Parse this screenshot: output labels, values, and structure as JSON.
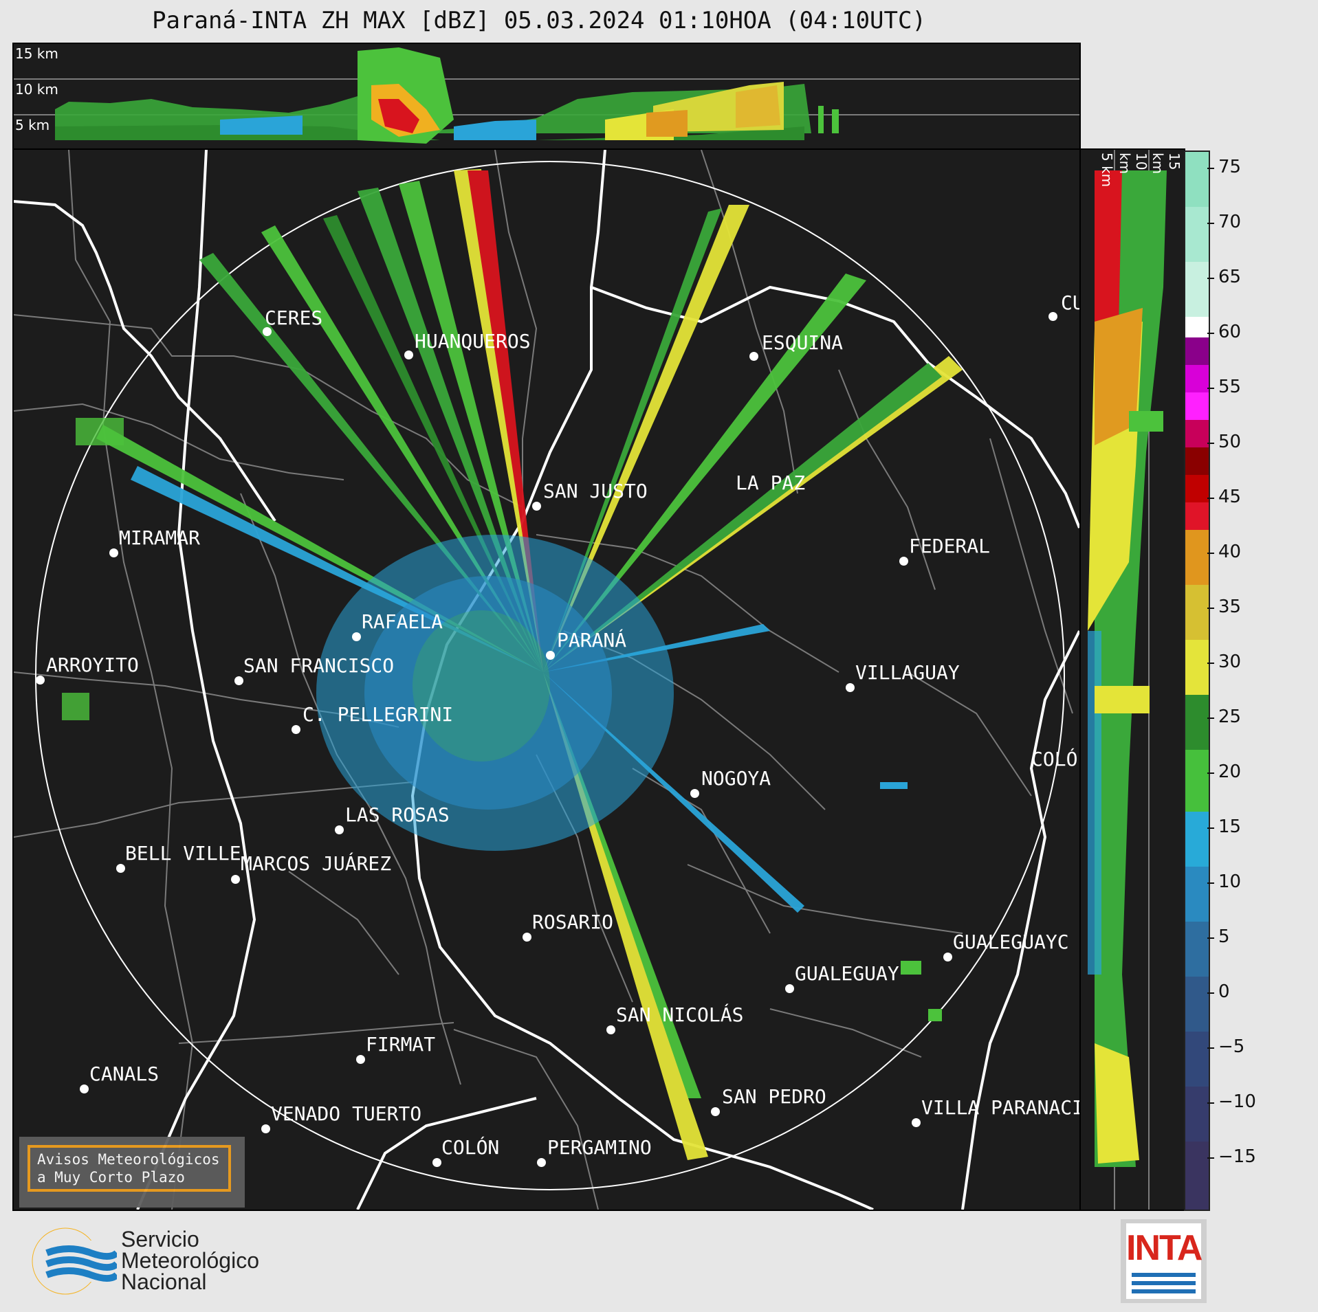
{
  "title": "Paraná-INTA ZH MAX [dBZ] 05.03.2024 01:10HOA (04:10UTC)",
  "top_panel": {
    "altitude_labels": [
      "15 km",
      "10 km",
      "5 km"
    ]
  },
  "side_panel": {
    "altitude_labels": [
      "5 km",
      "10 km",
      "15 km"
    ]
  },
  "colorbar": {
    "ticks": [
      "75",
      "70",
      "65",
      "60",
      "55",
      "50",
      "45",
      "40",
      "35",
      "30",
      "25",
      "20",
      "15",
      "10",
      "5",
      "0",
      "−5",
      "−10",
      "−15"
    ]
  },
  "cities": [
    {
      "name": "CERES"
    },
    {
      "name": "HUANQUEROS"
    },
    {
      "name": "ESQUINA"
    },
    {
      "name": "CU"
    },
    {
      "name": "SAN JUSTO"
    },
    {
      "name": "LA PAZ"
    },
    {
      "name": "MIRAMAR"
    },
    {
      "name": "FEDERAL"
    },
    {
      "name": "RAFAELA"
    },
    {
      "name": "ARROYITO"
    },
    {
      "name": "SAN FRANCISCO"
    },
    {
      "name": "PARANÁ"
    },
    {
      "name": "VILLAGUAY"
    },
    {
      "name": "C. PELLEGRINI"
    },
    {
      "name": "COLÓ"
    },
    {
      "name": "NOGOYA"
    },
    {
      "name": "LAS ROSAS"
    },
    {
      "name": "BELL VILLE"
    },
    {
      "name": "MARCOS JUÁREZ"
    },
    {
      "name": "ROSARIO"
    },
    {
      "name": "GUALEGUAYC"
    },
    {
      "name": "GUALEGUAY"
    },
    {
      "name": "SAN NICOLÁS"
    },
    {
      "name": "FIRMAT"
    },
    {
      "name": "CANALS"
    },
    {
      "name": "SAN PEDRO"
    },
    {
      "name": "VILLA PARANACIT"
    },
    {
      "name": "VENADO TUERTO"
    },
    {
      "name": "COLÓN"
    },
    {
      "name": "PERGAMINO"
    }
  ],
  "warning_box": {
    "line1": "Avisos Meteorológicos",
    "line2": "a Muy Corto Plazo"
  },
  "smn_logo": {
    "line1": "Servicio",
    "line2": "Meteorológico",
    "line3": "Nacional"
  },
  "inta_logo": {
    "text": "INTA"
  },
  "colors": {
    "accent_orange": "#f0a020",
    "inta_red": "#d8261c",
    "inta_blue": "#1f6fb5"
  }
}
